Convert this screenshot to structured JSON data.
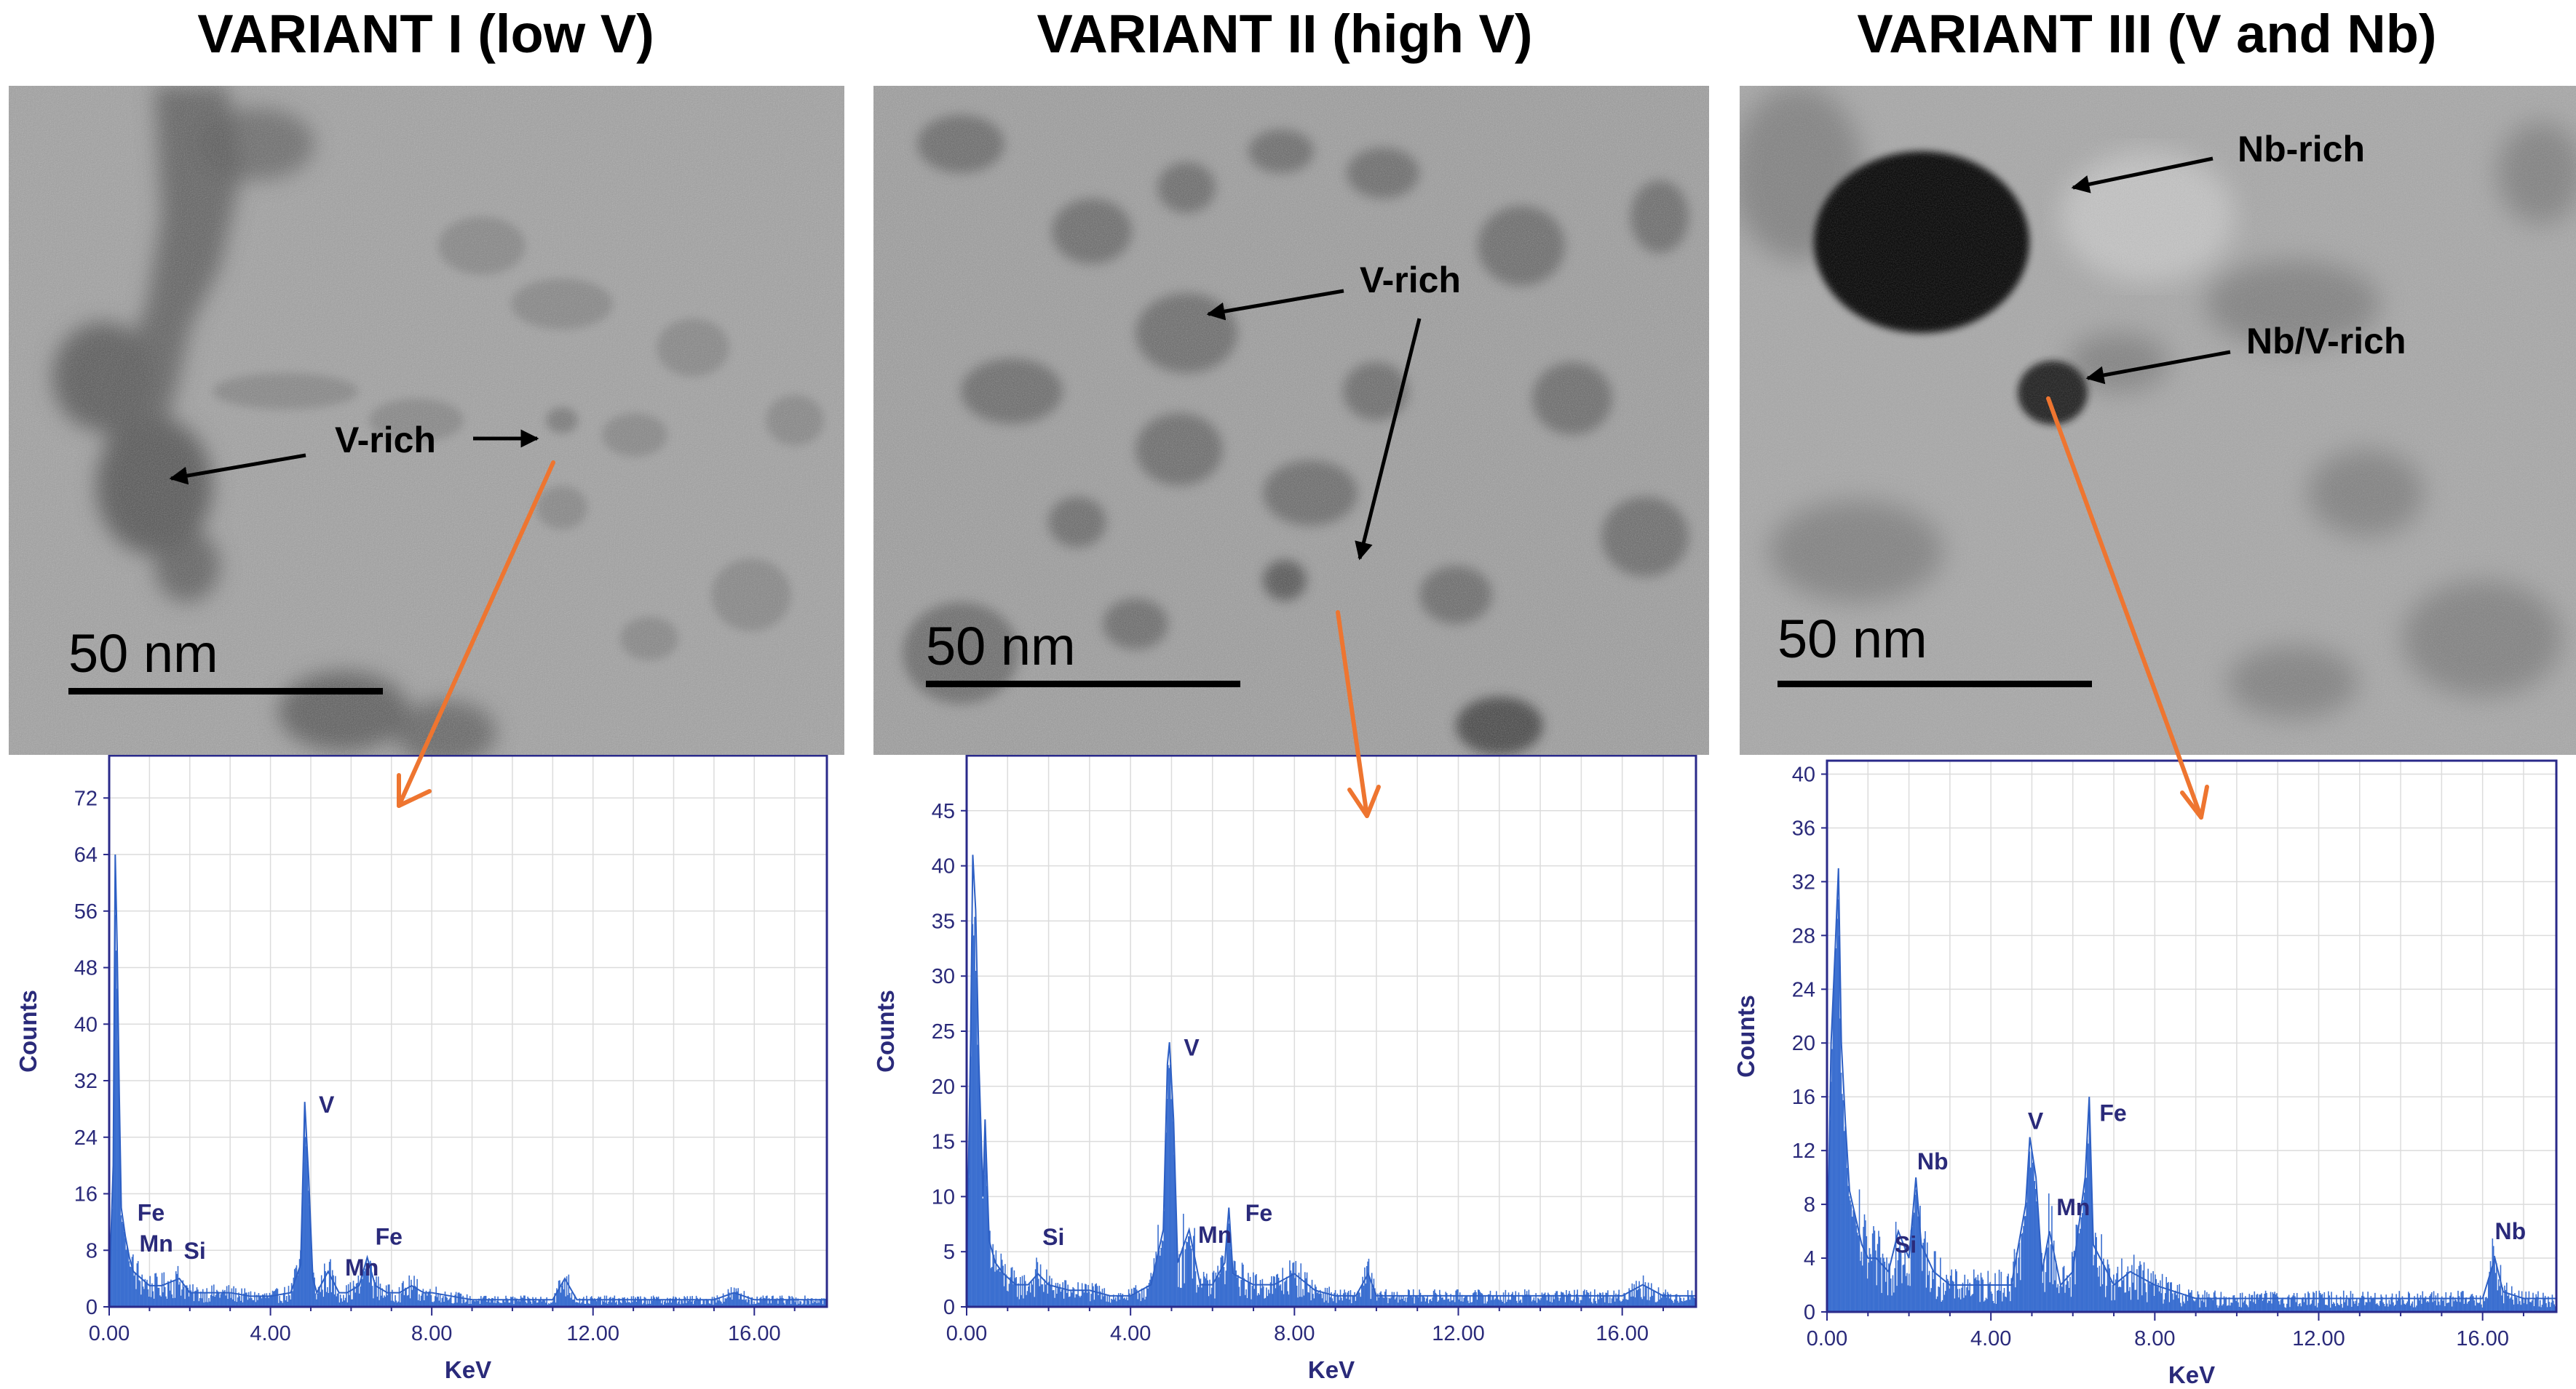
{
  "panels": [
    {
      "title": "VARIANT I (low V)",
      "scale_label": "50 nm",
      "labels": [
        "V-rich"
      ],
      "chart_data": {
        "type": "line",
        "title": "",
        "xlabel": "KeV",
        "ylabel": "Counts",
        "xlim": [
          0,
          17.8
        ],
        "ylim": [
          0,
          78
        ],
        "xticks": [
          "0.00",
          "4.00",
          "8.00",
          "12.00",
          "16.00"
        ],
        "xtick_values": [
          0,
          4,
          8,
          12,
          16
        ],
        "yticks": [
          "0",
          "8",
          "16",
          "24",
          "32",
          "40",
          "48",
          "56",
          "64",
          "72"
        ],
        "ytick_values": [
          0,
          8,
          16,
          24,
          32,
          40,
          48,
          56,
          64,
          72
        ],
        "grid": true,
        "series": [
          {
            "x": [
              0.0,
              0.1,
              0.15,
              0.2,
              0.25,
              0.3,
              0.4,
              0.5,
              0.6,
              0.8,
              1.0,
              1.3,
              1.74,
              2.0,
              2.5,
              3.0,
              3.5,
              4.0,
              4.5,
              4.75,
              4.85,
              4.95,
              5.05,
              5.15,
              5.43,
              5.7,
              5.9,
              6.2,
              6.4,
              6.6,
              6.9,
              7.2,
              7.5,
              7.8,
              8.0,
              8.5,
              9.0,
              9.5,
              10.0,
              10.5,
              11.0,
              11.3,
              11.6,
              12.0,
              13.0,
              14.0,
              15.0,
              15.5,
              16.0,
              17.0,
              17.8
            ],
            "y": [
              2,
              20,
              64,
              50,
              30,
              14,
              10,
              7,
              5,
              4,
              3,
              3,
              4,
              2,
              2,
              2,
              1.5,
              1.5,
              2,
              6,
              29,
              18,
              4,
              2,
              5,
              2,
              2,
              3,
              7,
              3,
              2,
              2,
              3,
              2,
              2,
              1.5,
              1,
              1,
              1,
              1,
              1,
              4,
              1,
              1,
              1,
              1,
              1,
              2,
              1,
              1,
              1
            ]
          }
        ],
        "peak_labels": [
          {
            "text": "Fe",
            "x": 0.7,
            "y": 12.2
          },
          {
            "text": "Mn",
            "x": 0.75,
            "y": 7.8
          },
          {
            "text": "Si",
            "x": 1.85,
            "y": 6.8
          },
          {
            "text": "V",
            "x": 5.2,
            "y": 27.5
          },
          {
            "text": "Fe",
            "x": 6.6,
            "y": 8.8
          },
          {
            "text": "Mn",
            "x": 5.85,
            "y": 4.4
          }
        ]
      }
    },
    {
      "title": "VARIANT II (high V)",
      "scale_label": "50 nm",
      "labels": [
        "V-rich"
      ],
      "chart_data": {
        "type": "line",
        "title": "",
        "xlabel": "KeV",
        "ylabel": "Counts",
        "xlim": [
          0,
          17.8
        ],
        "ylim": [
          0,
          50
        ],
        "xticks": [
          "0.00",
          "4.00",
          "8.00",
          "12.00",
          "16.00"
        ],
        "xtick_values": [
          0,
          4,
          8,
          12,
          16
        ],
        "yticks": [
          "0",
          "5",
          "10",
          "15",
          "20",
          "25",
          "30",
          "35",
          "40",
          "45"
        ],
        "ytick_values": [
          0,
          5,
          10,
          15,
          20,
          25,
          30,
          35,
          40,
          45
        ],
        "grid": true,
        "series": [
          {
            "x": [
              0.0,
              0.1,
              0.15,
              0.22,
              0.3,
              0.4,
              0.45,
              0.55,
              0.7,
              0.9,
              1.2,
              1.5,
              1.74,
              2.0,
              2.5,
              3.0,
              3.5,
              4.0,
              4.5,
              4.8,
              4.9,
              4.95,
              5.05,
              5.15,
              5.43,
              5.7,
              6.0,
              6.3,
              6.4,
              6.5,
              7.0,
              7.5,
              8.0,
              8.5,
              9.0,
              9.5,
              9.8,
              10.0,
              10.5,
              11.0,
              12.0,
              13.0,
              14.0,
              15.0,
              16.0,
              16.5,
              17.0,
              17.8
            ],
            "y": [
              2,
              25,
              41,
              36,
              22,
              10,
              17,
              6,
              4,
              3,
              2,
              2,
              3,
              2,
              1.5,
              1.5,
              1,
              1,
              2,
              7,
              22,
              24,
              17,
              4,
              7,
              2,
              2,
              4,
              9,
              3,
              2,
              2,
              3,
              1.5,
              1,
              1,
              3,
              1,
              1,
              1,
              1,
              1,
              1,
              1,
              1,
              2,
              1,
              1
            ]
          }
        ],
        "peak_labels": [
          {
            "text": "Si",
            "x": 1.85,
            "y": 5.6
          },
          {
            "text": "V",
            "x": 5.3,
            "y": 22.8
          },
          {
            "text": "Mn",
            "x": 5.65,
            "y": 5.8
          },
          {
            "text": "Fe",
            "x": 6.8,
            "y": 7.8
          }
        ]
      }
    },
    {
      "title": "VARIANT III (V and Nb)",
      "scale_label": "50 nm",
      "labels": [
        "Nb-rich",
        "Nb/V-rich"
      ],
      "chart_data": {
        "type": "line",
        "title": "",
        "xlabel": "KeV",
        "ylabel": "Counts",
        "xlim": [
          0,
          17.8
        ],
        "ylim": [
          0,
          41
        ],
        "xticks": [
          "0.00",
          "4.00",
          "8.00",
          "12.00",
          "16.00"
        ],
        "xtick_values": [
          0,
          4,
          8,
          12,
          16
        ],
        "yticks": [
          "0",
          "4",
          "8",
          "12",
          "16",
          "20",
          "24",
          "28",
          "32",
          "36",
          "40"
        ],
        "ytick_values": [
          0,
          4,
          8,
          12,
          16,
          20,
          24,
          28,
          32,
          36,
          40
        ],
        "grid": true,
        "series": [
          {
            "x": [
              0.0,
              0.1,
              0.2,
              0.28,
              0.35,
              0.45,
              0.55,
              0.7,
              0.85,
              1.0,
              1.2,
              1.5,
              1.74,
              2.0,
              2.17,
              2.3,
              2.6,
              3.0,
              3.5,
              4.0,
              4.5,
              4.85,
              4.95,
              5.1,
              5.25,
              5.43,
              5.7,
              6.0,
              6.3,
              6.4,
              6.5,
              7.0,
              7.4,
              8.0,
              8.5,
              9.0,
              10.0,
              11.0,
              12.0,
              13.0,
              14.0,
              15.0,
              16.0,
              16.3,
              16.5,
              17.0,
              17.8
            ],
            "y": [
              2,
              20,
              27,
              33,
              20,
              14,
              9,
              7,
              5,
              4,
              4,
              3,
              6,
              4,
              10,
              5,
              3,
              2,
              2,
              2,
              2,
              8,
              13,
              10,
              3,
              6,
              2,
              3,
              10,
              16,
              5,
              2,
              3,
              2,
              1.5,
              1,
              1,
              1,
              1,
              1,
              1,
              1,
              1,
              4,
              1.5,
              1,
              1
            ]
          }
        ],
        "peak_labels": [
          {
            "text": "Si",
            "x": 1.65,
            "y": 4.4
          },
          {
            "text": "Nb",
            "x": 2.2,
            "y": 10.6
          },
          {
            "text": "V",
            "x": 4.9,
            "y": 13.6
          },
          {
            "text": "Mn",
            "x": 5.6,
            "y": 7.2
          },
          {
            "text": "Fe",
            "x": 6.65,
            "y": 14.2
          },
          {
            "text": "Nb",
            "x": 16.3,
            "y": 5.4
          }
        ]
      }
    }
  ]
}
